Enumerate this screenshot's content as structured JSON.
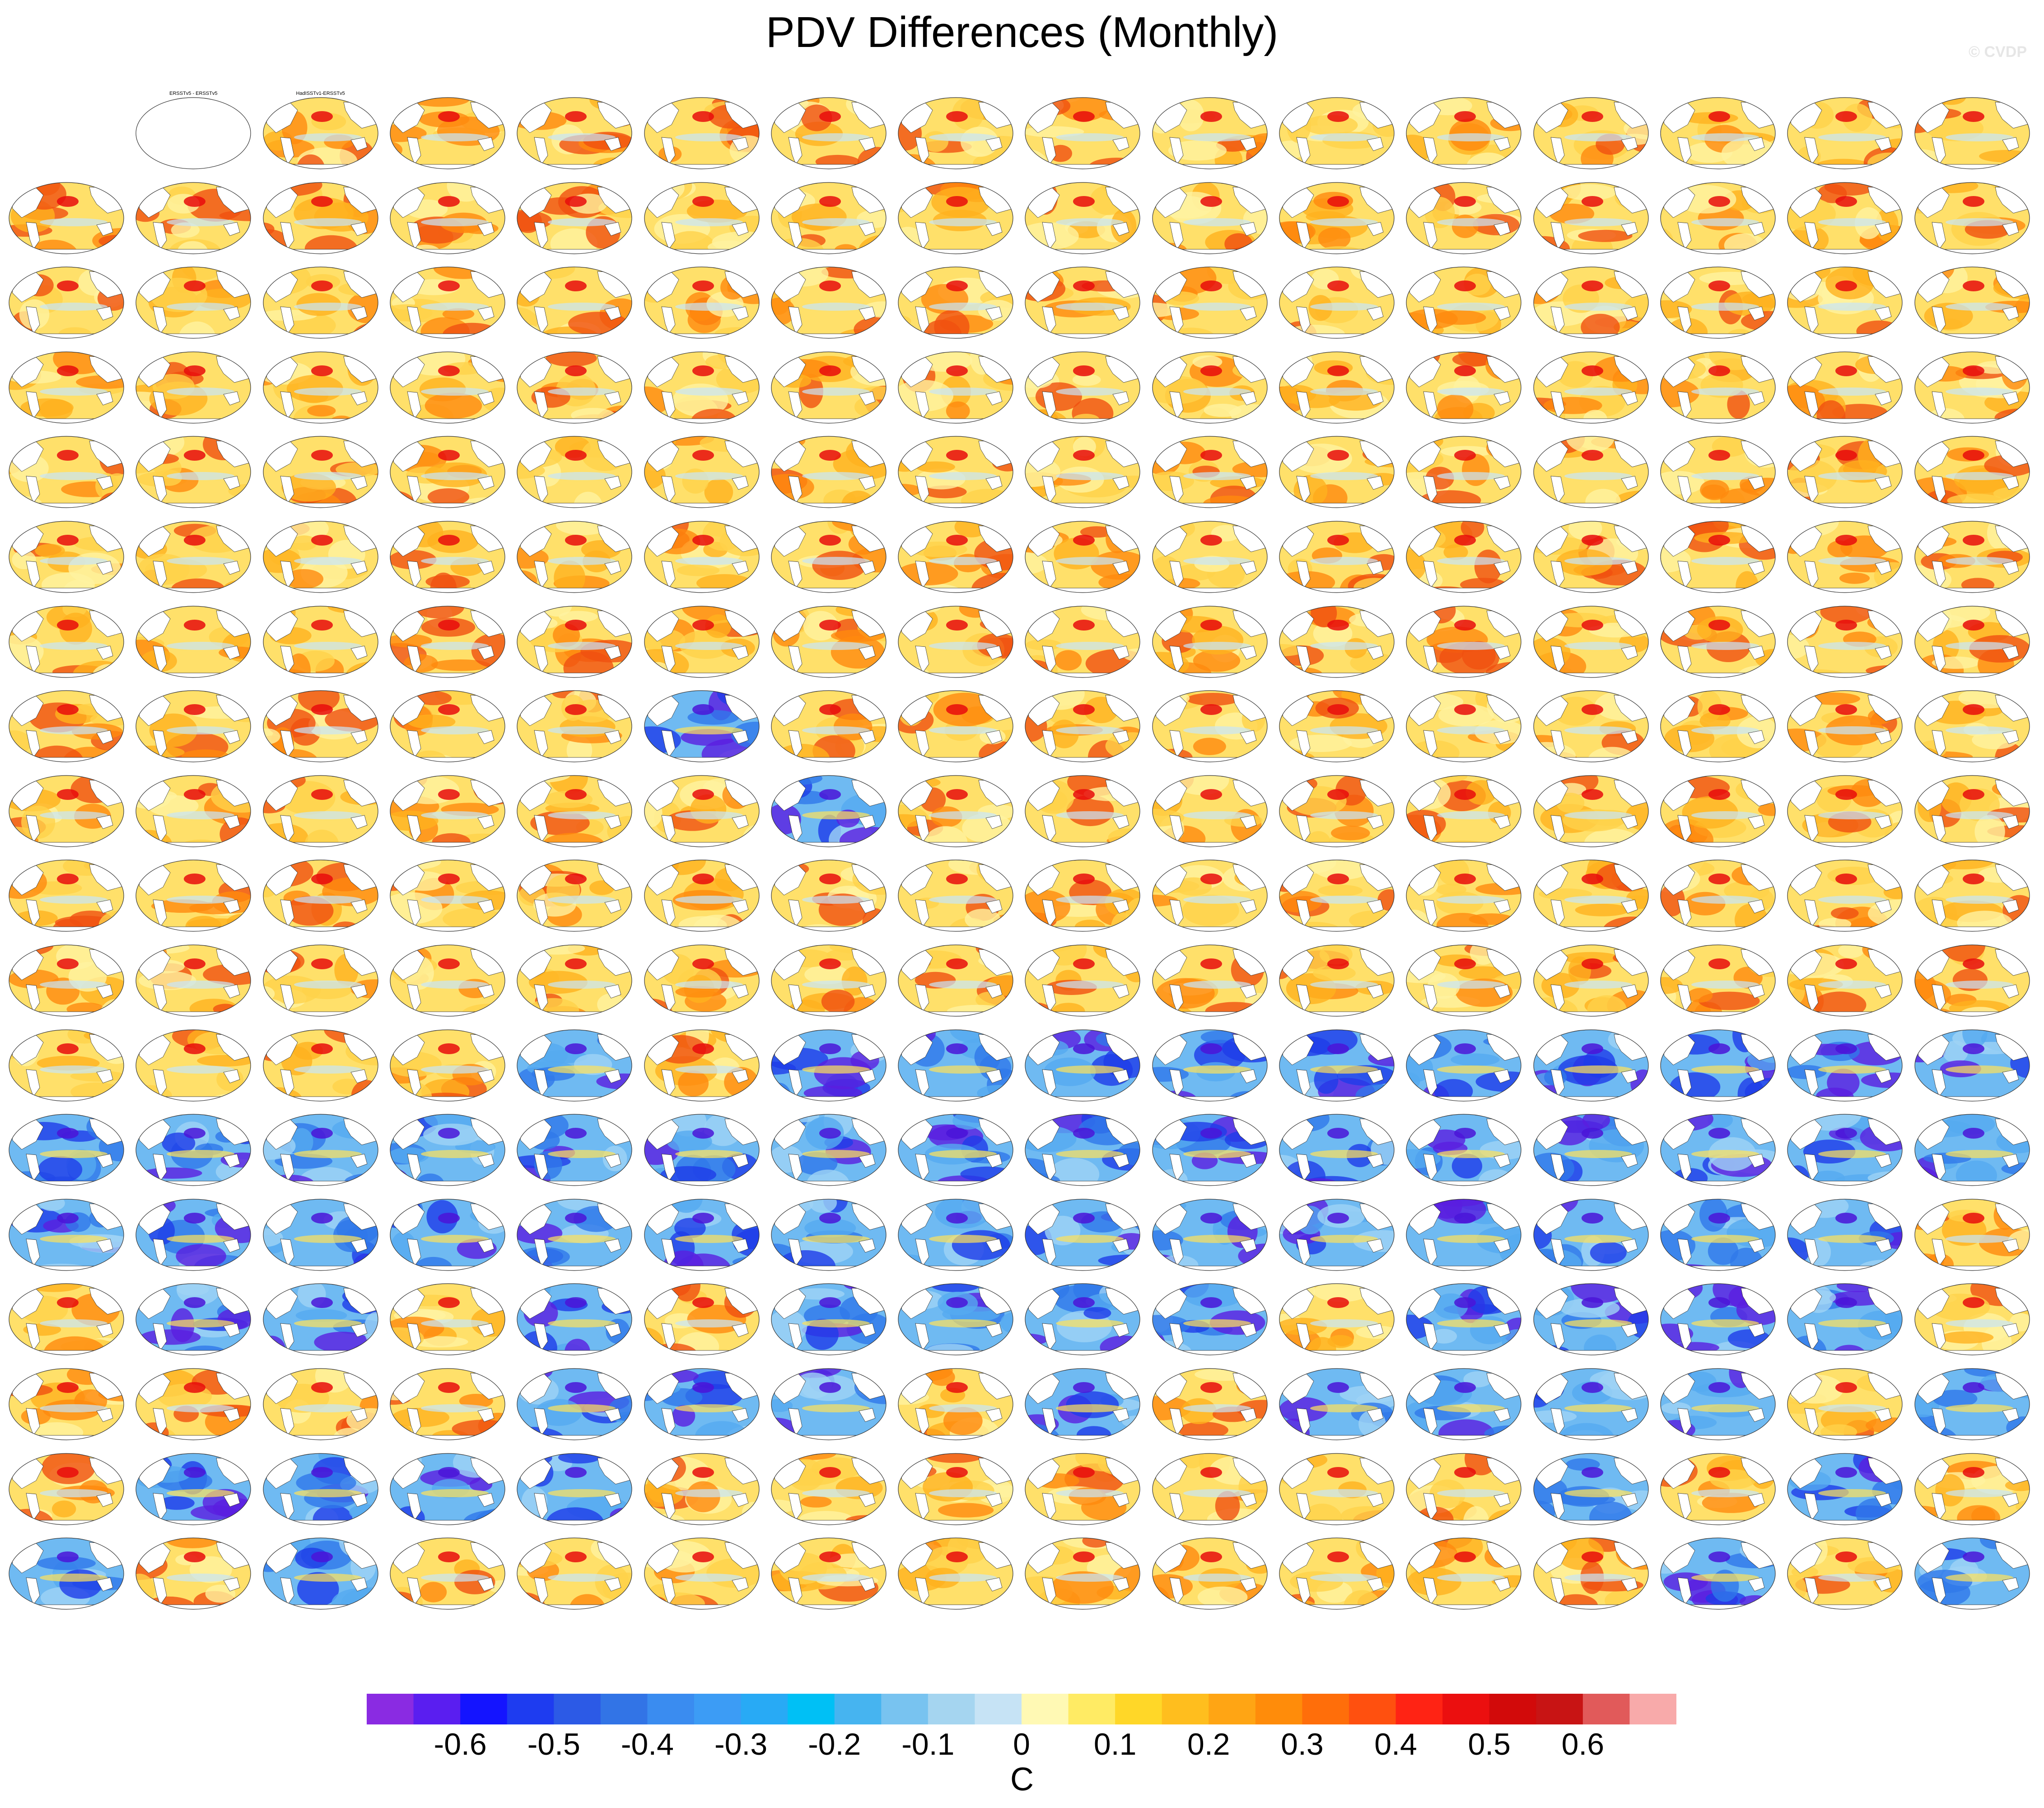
{
  "title": "PDV Differences (Monthly)",
  "watermark": "© CVDP",
  "units": "C",
  "colorbar": {
    "tick_labels": [
      "-0.6",
      "-0.5",
      "-0.4",
      "-0.3",
      "-0.2",
      "-0.1",
      "0",
      "0.1",
      "0.2",
      "0.3",
      "0.4",
      "0.5",
      "0.6"
    ],
    "colors": [
      "#8a2be2",
      "#5a1ef0",
      "#1414ff",
      "#1e3cf0",
      "#2c5ae6",
      "#3274e6",
      "#3a8cf0",
      "#3c9cf5",
      "#28aaf5",
      "#00c0f5",
      "#46b4f0",
      "#78c3f0",
      "#a5d5f0",
      "#c6e3f5",
      "#fff9b4",
      "#ffeb64",
      "#ffd728",
      "#ffbe1e",
      "#ffa514",
      "#ff8c0a",
      "#ff6e0a",
      "#ff500f",
      "#ff2314",
      "#eb0f0f",
      "#d20a0a",
      "#c81414",
      "#e15a5a",
      "#f8aaaa"
    ]
  },
  "panels": {
    "rows": 18,
    "cols": 16,
    "first_row_labels": [
      "ERSSTv5 - ERSSTv5",
      "HadISSTv1-ERSSTv5"
    ],
    "fill_pattern": "wwwwwwwwwwwwwwwwwwwwwwwwwwwwwwwwwwwwwwwwwwwwwwwwwwwwwwwwwwwwwwwwwwwwwwwwwwwwwwwwwwwwwwwwwwwwwwwwwwwwwwwwwwwwwwwwwwwwcwwwwwwwwwwwwwwwwcwwwwwwwwwwwwwwwwwwwwwwwwwwwwwwwwwwwwwwwwwwwwwcwcccccccccccccccccccccccccccccccccccccccccwwccwcwccccwccccwwwwwcccwcwccccwcwccccwwwwwwwcwcwcwcwwwwwwwwwwcwcwcwwwwccwcwcccccccccwwcccccccccccccwcwccccwwwcwwcwccwwcwccwcwwccccccccccccwwcwwwcccwcccccccccwccccccccccccccccccccccccc"
  }
}
